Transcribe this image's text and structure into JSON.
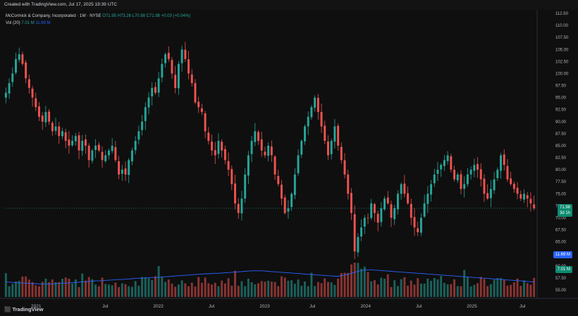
{
  "banner": {
    "text": "Created with TradingView.com, Jul 17, 2025 19:39 UTC"
  },
  "legend": {
    "symbol": "McCormick & Company, Incorporated · 1W · NYSE",
    "ohlc": "O71.95 H73.26 L70.98 C71.98 +0.03 (+0.04%)",
    "vol_label": "Vol (20)",
    "vol_value": "7.01 M",
    "vol_ma_value": "11.69 M"
  },
  "price_tags": {
    "price": "71.98",
    "countdown": "3d 1h",
    "vol_ma": "11.69 M",
    "vol": "7.01 M"
  },
  "colors": {
    "up": "#26a69a",
    "down": "#ef5350",
    "ma": "#2962ff",
    "tag_green": "#0d8a6f",
    "tag_blue": "#2962ff"
  },
  "footer": {
    "logo": "TradingView"
  },
  "chart_data": {
    "type": "candlestick",
    "price_axis": {
      "min": 55,
      "max": 112.5,
      "ticks": [
        "112.50",
        "110.00",
        "107.50",
        "105.00",
        "102.50",
        "100.00",
        "97.50",
        "95.00",
        "92.50",
        "90.00",
        "87.50",
        "85.00",
        "82.50",
        "80.00",
        "77.50",
        "75.00",
        "72.50",
        "70.00",
        "67.50",
        "65.00",
        "62.50",
        "60.00",
        "57.50",
        "55.00"
      ]
    },
    "time_axis": {
      "labels": [
        "2021",
        "Jul",
        "2022",
        "Jul",
        "2023",
        "Jul",
        "2024",
        "Jul",
        "2025",
        "Jul"
      ]
    },
    "closes": [
      96,
      98,
      100,
      103,
      104,
      102,
      99,
      97,
      95,
      93,
      91,
      90,
      92,
      90,
      88,
      89,
      87,
      88,
      86,
      85,
      86,
      87,
      84,
      86,
      85,
      82,
      84,
      85,
      84,
      82,
      83,
      84,
      85,
      82,
      79,
      80,
      79,
      82,
      84,
      86,
      88,
      90,
      93,
      95,
      97,
      96,
      99,
      102,
      104,
      103,
      100,
      97,
      102,
      105,
      103,
      100,
      98,
      94,
      93,
      92,
      88,
      86,
      84,
      83,
      86,
      84,
      82,
      80,
      77,
      73,
      71,
      74,
      79,
      83,
      86,
      88,
      86,
      84,
      83,
      85,
      83,
      79,
      77,
      74,
      71,
      72,
      75,
      79,
      83,
      86,
      89,
      91,
      93,
      95,
      92,
      89,
      86,
      83,
      86,
      89,
      85,
      82,
      79,
      75,
      71,
      63,
      66,
      68,
      70,
      70,
      73,
      71,
      69,
      72,
      74,
      73,
      70,
      72,
      75,
      77,
      75,
      73,
      70,
      68,
      67,
      70,
      73,
      75,
      77,
      79,
      80,
      81,
      82,
      83,
      80,
      78,
      79,
      76,
      77,
      79,
      80,
      81,
      80,
      78,
      75,
      74,
      76,
      78,
      80,
      83,
      81,
      78,
      77,
      76,
      75,
      74,
      75,
      74,
      73,
      72
    ],
    "volume_ma": [
      11.7,
      11.6,
      11.5,
      11.4,
      11.3,
      11.2,
      11.2,
      11.1,
      11.0,
      11.0,
      10.9,
      10.9,
      10.8,
      10.8,
      10.9,
      11.0,
      11.1,
      11.2,
      11.2,
      11.3,
      11.4,
      11.5,
      11.6,
      11.7,
      11.8,
      11.9,
      12.0,
      12.1,
      12.1,
      12.2,
      12.3,
      12.4,
      12.5,
      12.6,
      12.7,
      12.7,
      12.8,
      12.9,
      13.0,
      13.1,
      13.2,
      13.2,
      13.3,
      13.4,
      13.5,
      13.5,
      13.6,
      13.7,
      13.8,
      13.9,
      14.0,
      14.1,
      14.2,
      14.3,
      14.4,
      14.5,
      14.6,
      14.7,
      14.8,
      14.9,
      15.0,
      15.0,
      15.1,
      15.2,
      15.2,
      15.3,
      15.4,
      15.5,
      15.6,
      15.7,
      15.8,
      15.9,
      16.0,
      16.1,
      16.2,
      16.2,
      16.2,
      16.2,
      16.1,
      16.0,
      15.9,
      15.8,
      15.7,
      15.6,
      15.5,
      15.4,
      15.3,
      15.2,
      15.1,
      15.0,
      14.9,
      14.8,
      14.7,
      14.6,
      14.5,
      14.4,
      14.3,
      14.2,
      14.1,
      14.0,
      14.0,
      14.2,
      14.5,
      14.8,
      15.2,
      15.6,
      16.0,
      16.3,
      16.5,
      16.6,
      16.6,
      16.5,
      16.4,
      16.3,
      16.2,
      16.1,
      16.0,
      15.9,
      15.8,
      15.7,
      15.6,
      15.5,
      15.4,
      15.3,
      15.2,
      15.1,
      15.0,
      14.9,
      14.8,
      14.7,
      14.6,
      14.5,
      14.4,
      14.3,
      14.2,
      14.1,
      14.0,
      13.9,
      13.8,
      13.7,
      13.6,
      13.5,
      13.4,
      13.3,
      13.2,
      13.1,
      13.0,
      12.9,
      12.8,
      12.7,
      12.6,
      12.5,
      12.4,
      12.3,
      12.2,
      12.1,
      12.0,
      11.9,
      11.8,
      11.7
    ],
    "last_close": 71.98
  }
}
